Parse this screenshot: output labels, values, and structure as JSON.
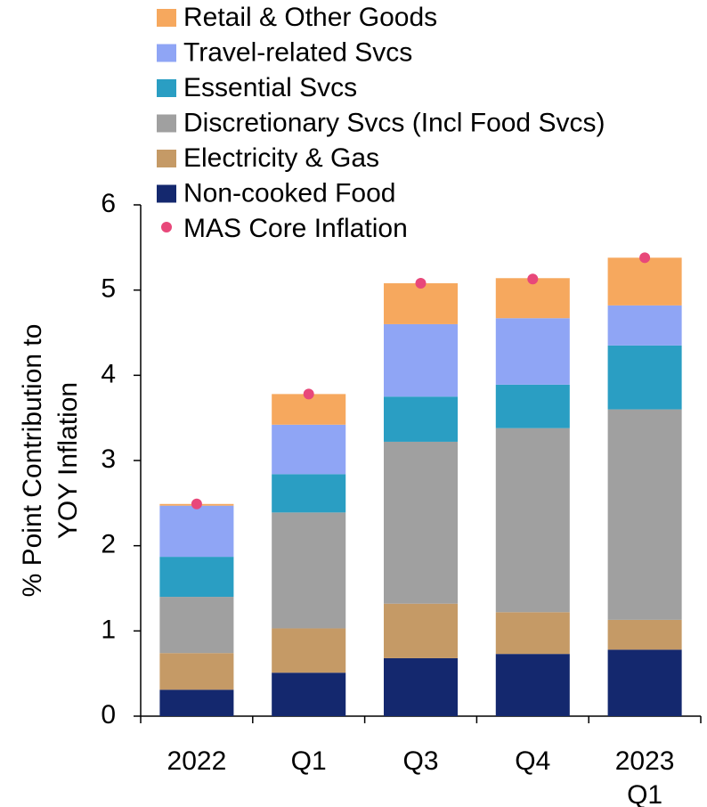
{
  "chart_data": {
    "type": "stacked_bar",
    "y_label": [
      "% Point Contribution to",
      "YOY Inflation"
    ],
    "categories": [
      "2022",
      "Q1",
      "Q3",
      "Q4",
      "2023 Q1"
    ],
    "series": [
      {
        "name": "Non-cooked Food",
        "color": "#14286e",
        "values": [
          0.31,
          0.51,
          0.68,
          0.73,
          0.78
        ]
      },
      {
        "name": "Electricity & Gas",
        "color": "#c59a66",
        "values": [
          0.43,
          0.52,
          0.64,
          0.49,
          0.35
        ]
      },
      {
        "name": "Discretionary Svcs (Incl Food Svcs)",
        "color": "#a0a0a0",
        "values": [
          0.66,
          1.36,
          1.9,
          2.16,
          2.47
        ]
      },
      {
        "name": "Essential Svcs",
        "color": "#2a9ec3",
        "values": [
          0.47,
          0.45,
          0.53,
          0.51,
          0.75
        ]
      },
      {
        "name": "Travel-related Svcs",
        "color": "#8fa5f5",
        "values": [
          0.6,
          0.58,
          0.85,
          0.78,
          0.47
        ]
      },
      {
        "name": "Retail & Other Goods",
        "color": "#f6a85e",
        "values": [
          0.02,
          0.36,
          0.48,
          0.47,
          0.56
        ]
      }
    ],
    "markers": {
      "name": "MAS Core Inflation",
      "color": "#e8487a",
      "values": [
        2.49,
        3.78,
        5.08,
        5.13,
        5.38
      ]
    },
    "ylim": [
      0,
      6
    ],
    "yticks": [
      0,
      1,
      2,
      3,
      4,
      5,
      6
    ]
  }
}
